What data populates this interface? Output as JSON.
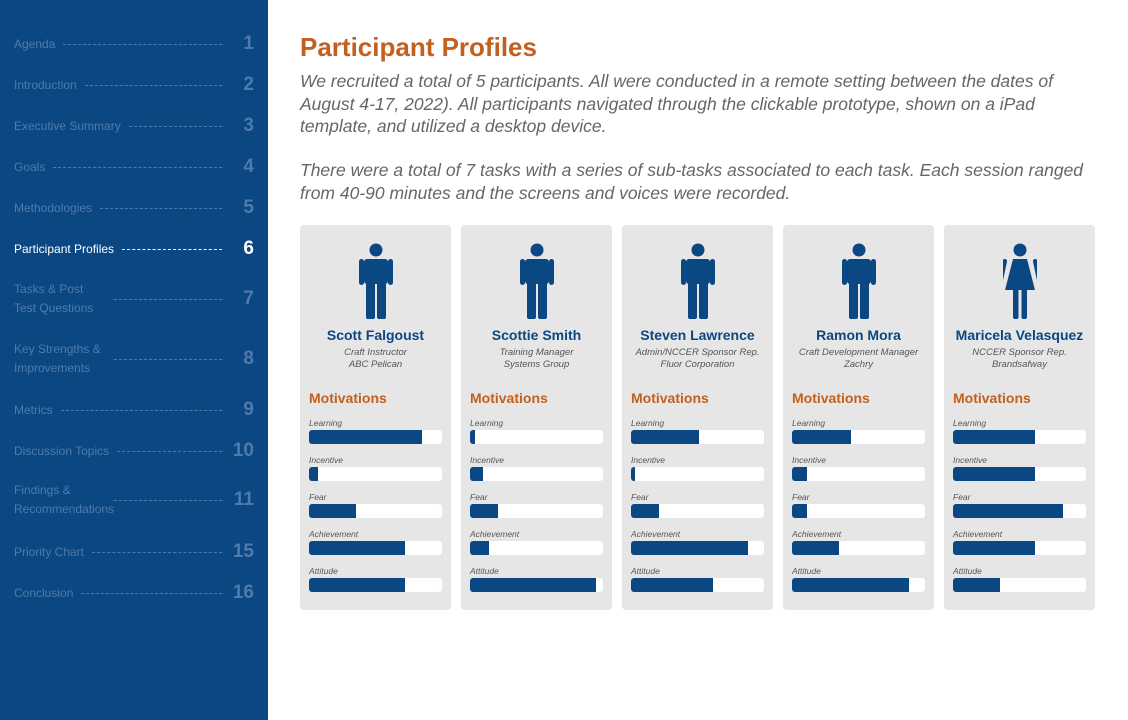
{
  "sidebar": {
    "items": [
      {
        "label": "Agenda",
        "number": "1"
      },
      {
        "label": "Introduction",
        "number": "2"
      },
      {
        "label": "Executive Summary",
        "number": "3"
      },
      {
        "label": "Goals",
        "number": "4"
      },
      {
        "label": "Methodologies",
        "number": "5"
      },
      {
        "label": "Participant Profiles",
        "number": "6",
        "active": true
      },
      {
        "label": "Tasks & Post Test Questions",
        "number": "7"
      },
      {
        "label": "Key Strengths & Improvements",
        "number": "8"
      },
      {
        "label": "Metrics",
        "number": "9"
      },
      {
        "label": "Discussion Topics",
        "number": "10"
      },
      {
        "label": "Findings & Recommendations",
        "number": "11"
      },
      {
        "label": "Priority Chart",
        "number": "15"
      },
      {
        "label": "Conclusion",
        "number": "16"
      }
    ]
  },
  "main": {
    "title": "Participant Profiles",
    "intro_1": "We recruited a total of 5 participants. All were conducted in a remote setting between the dates of August 4-17, 2022). All participants navigated through the clickable prototype, shown on a iPad template, and utilized a desktop device.",
    "intro_2": "There were a total of 7 tasks with a series of sub-tasks associated to each task. Each session ranged from 40-90 minutes and the screens and voices were recorded.",
    "motivations_title": "Motivations",
    "motivation_labels": [
      "Learning",
      "Incentive",
      "Fear",
      "Achievement",
      "Attitude"
    ],
    "participants": [
      {
        "name": "Scott Falgoust",
        "role": "Craft Instructor",
        "org": "ABC Pelican",
        "gender": "male",
        "icon": "male-person-icon",
        "motivations": [
          0.85,
          0.07,
          0.35,
          0.72,
          0.72
        ]
      },
      {
        "name": "Scottie Smith",
        "role": "Training Manager",
        "org": "Systems Group",
        "gender": "male",
        "icon": "male-person-icon",
        "motivations": [
          0.04,
          0.1,
          0.21,
          0.14,
          0.95
        ]
      },
      {
        "name": "Steven Lawrence",
        "role": "Admin/NCCER Sponsor Rep.",
        "org": "Fluor Corporation",
        "gender": "male",
        "icon": "male-person-icon",
        "motivations": [
          0.51,
          0.03,
          0.21,
          0.88,
          0.62
        ]
      },
      {
        "name": "Ramon Mora",
        "role": "Craft Development Manager",
        "org": "Zachry",
        "gender": "male",
        "icon": "male-person-icon",
        "motivations": [
          0.44,
          0.11,
          0.11,
          0.35,
          0.88
        ]
      },
      {
        "name": "Maricela Velasquez",
        "role": "NCCER Sponsor Rep.",
        "org": "Brandsafway",
        "gender": "female",
        "icon": "female-person-icon",
        "motivations": [
          0.62,
          0.62,
          0.83,
          0.62,
          0.35
        ]
      }
    ]
  },
  "colors": {
    "sidebar_bg": "#0a4783",
    "accent_orange": "#c1601f",
    "brand_blue": "#0a4783",
    "card_bg": "#e6e6e6"
  }
}
